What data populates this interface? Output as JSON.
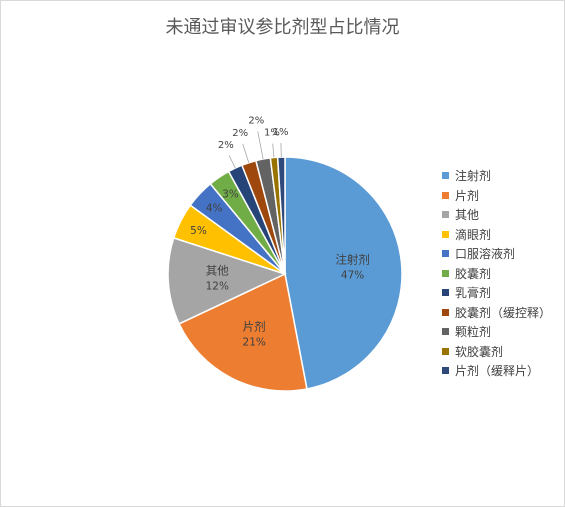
{
  "chart_data": {
    "type": "pie",
    "title": "未通过审议参比剂型占比情况",
    "categories": [
      "注射剂",
      "片剂",
      "其他",
      "滴眼剂",
      "口服溶液剂",
      "胶囊剂",
      "乳膏剂",
      "胶囊剂（缓控释）",
      "颗粒剂",
      "软胶囊剂",
      "片剂（缓释片）"
    ],
    "values": [
      47,
      21,
      12,
      5,
      4,
      3,
      2,
      2,
      2,
      1,
      1
    ],
    "labels": [
      "47%",
      "21%",
      "12%",
      "5%",
      "4%",
      "3%",
      "2%",
      "2%",
      "2%",
      "1%",
      "1%"
    ],
    "colors": [
      "#5b9bd5",
      "#ed7d31",
      "#a5a5a5",
      "#ffc000",
      "#4472c4",
      "#70ad47",
      "#264478",
      "#9e480e",
      "#636363",
      "#997300",
      "#2f4a7a"
    ],
    "legend_position": "right"
  }
}
